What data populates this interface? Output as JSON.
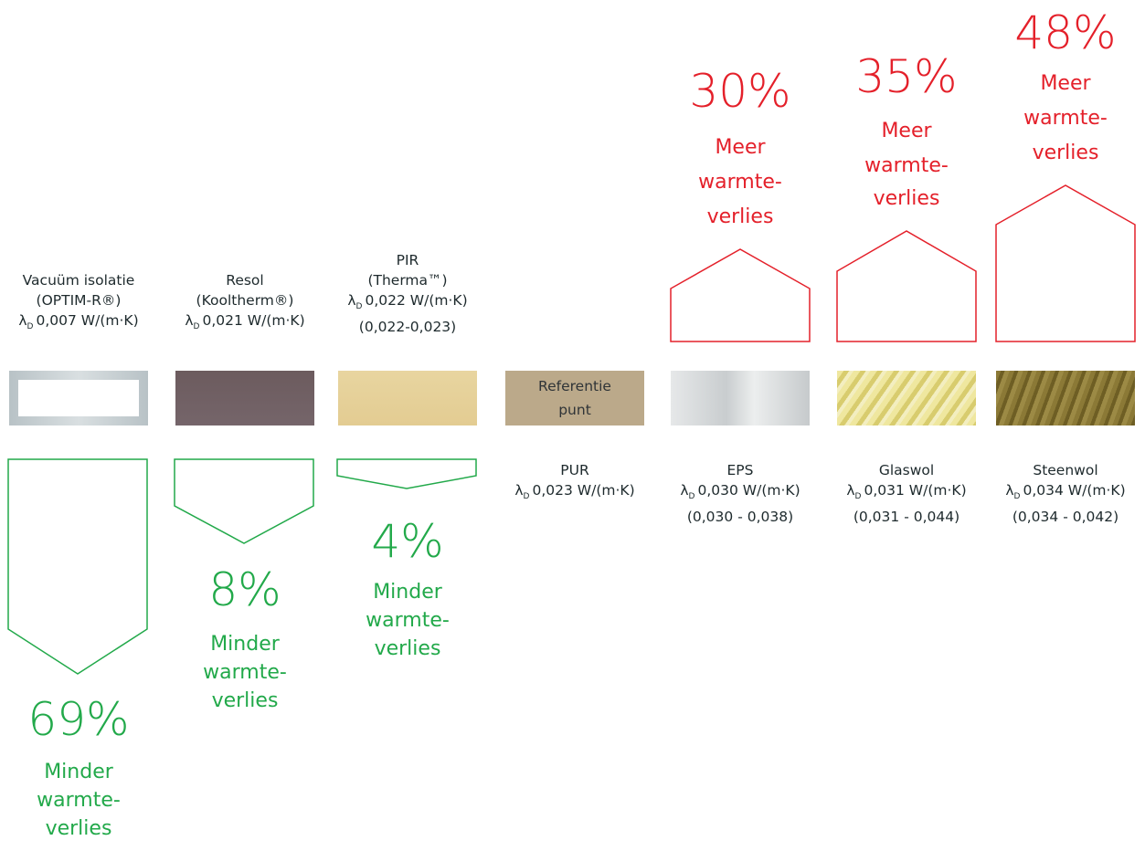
{
  "colors": {
    "reduction": "#22a94a",
    "increase": "#e4202a",
    "text": "#1e2a2d"
  },
  "materials": [
    {
      "name_lines": [
        "Vacuüm isolatie",
        "(OPTIM-R®)"
      ],
      "lambda_symbol": "λ",
      "lambda_sub": "D",
      "lambda_value": "0,007 W/(m·K)",
      "range": "",
      "swatch_text": "",
      "change": {
        "direction": "minder",
        "percent": "69%",
        "word_lines": [
          "Minder",
          "warmte-",
          "verlies"
        ]
      }
    },
    {
      "name_lines": [
        "Resol",
        "(Kooltherm®)"
      ],
      "lambda_symbol": "λ",
      "lambda_sub": "D",
      "lambda_value": "0,021 W/(m·K)",
      "range": "",
      "swatch_text": "",
      "change": {
        "direction": "minder",
        "percent": "8%",
        "word_lines": [
          "Minder",
          "warmte-",
          "verlies"
        ]
      }
    },
    {
      "name_lines": [
        "PIR",
        "(Therma™)"
      ],
      "lambda_symbol": "λ",
      "lambda_sub": "D",
      "lambda_value": "0,022 W/(m·K)",
      "range": "(0,022-0,023)",
      "swatch_text": "",
      "change": {
        "direction": "minder",
        "percent": "4%",
        "word_lines": [
          "Minder",
          "warmte-",
          "verlies"
        ]
      }
    },
    {
      "name_lines": [
        "PUR"
      ],
      "lambda_symbol": "λ",
      "lambda_sub": "D",
      "lambda_value": "0,023 W/(m·K)",
      "range": "",
      "swatch_text": [
        "Referentie",
        "punt"
      ],
      "change": null
    },
    {
      "name_lines": [
        "EPS"
      ],
      "lambda_symbol": "λ",
      "lambda_sub": "D",
      "lambda_value": "0,030 W/(m·K)",
      "range": "(0,030 - 0,038)",
      "swatch_text": "",
      "change": {
        "direction": "meer",
        "percent": "30%",
        "word_lines": [
          "Meer",
          "warmte-",
          "verlies"
        ]
      }
    },
    {
      "name_lines": [
        "Glaswol"
      ],
      "lambda_symbol": "λ",
      "lambda_sub": "D",
      "lambda_value": "0,031 W/(m·K)",
      "range": "(0,031 - 0,044)",
      "swatch_text": "",
      "change": {
        "direction": "meer",
        "percent": "35%",
        "word_lines": [
          "Meer",
          "warmte-",
          "verlies"
        ]
      }
    },
    {
      "name_lines": [
        "Steenwol"
      ],
      "lambda_symbol": "λ",
      "lambda_sub": "D",
      "lambda_value": "0,034 W/(m·K)",
      "range": "(0,034 - 0,042)",
      "swatch_text": "",
      "change": {
        "direction": "meer",
        "percent": "48%",
        "word_lines": [
          "Meer",
          "warmte-",
          "verlies"
        ]
      }
    }
  ]
}
